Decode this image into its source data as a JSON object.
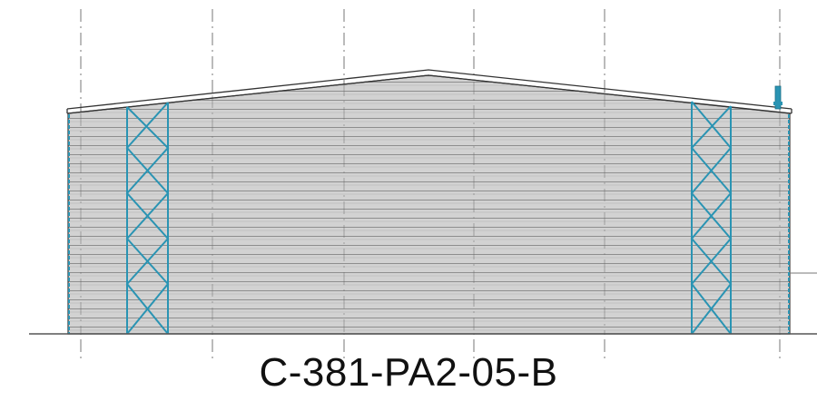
{
  "drawing": {
    "label": "C-381-PA2-05-B",
    "colors": {
      "background": "#ffffff",
      "cladding_fill": "#d2d2d2",
      "cladding_lines": "#8e8e8e",
      "outline": "#333333",
      "bracing": "#2a94b3",
      "gridlines": "#777777",
      "ground": "#555555"
    }
  }
}
